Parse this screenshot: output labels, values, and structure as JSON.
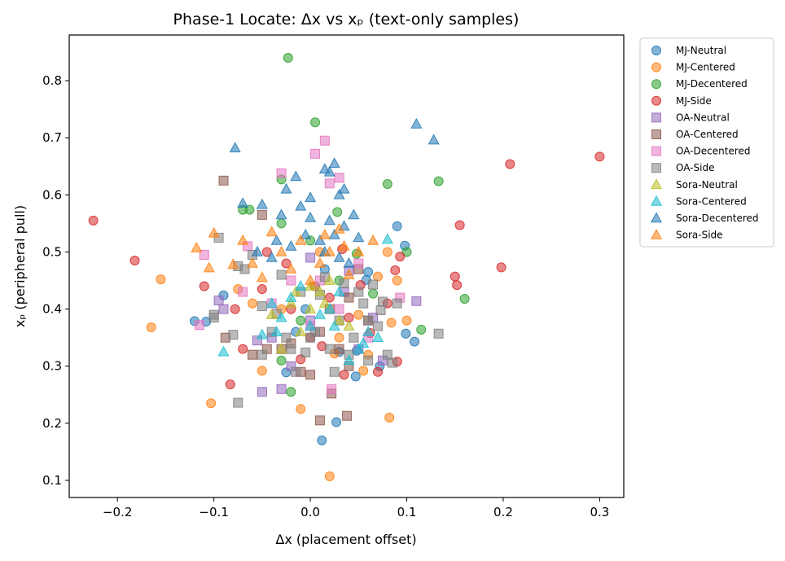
{
  "chart_data": {
    "type": "scatter",
    "title": "Phase-1 Locate: Δx vs xₚ (text-only samples)",
    "xlabel": "Δx (placement offset)",
    "ylabel": "xₚ (peripheral pull)",
    "xlim": [
      -0.25,
      0.325
    ],
    "ylim": [
      0.07,
      0.88
    ],
    "xticks": [
      -0.2,
      -0.1,
      0.0,
      0.1,
      0.2,
      0.3
    ],
    "xtick_labels": [
      "−0.2",
      "−0.1",
      "0.0",
      "0.1",
      "0.2",
      "0.3"
    ],
    "yticks": [
      0.1,
      0.2,
      0.3,
      0.4,
      0.5,
      0.6,
      0.7,
      0.8
    ],
    "ytick_labels": [
      "0.1",
      "0.2",
      "0.3",
      "0.4",
      "0.5",
      "0.6",
      "0.7",
      "0.8"
    ],
    "grid": false,
    "legend_position": "outside-right",
    "series": [
      {
        "name": "MJ-Neutral",
        "marker": "circle",
        "color": "#1f77b4",
        "points": [
          [
            -0.12,
            0.379
          ],
          [
            -0.108,
            0.378
          ],
          [
            -0.09,
            0.424
          ],
          [
            0.012,
            0.17
          ],
          [
            0.027,
            0.202
          ],
          [
            0.09,
            0.545
          ],
          [
            0.098,
            0.511
          ],
          [
            0.108,
            0.343
          ],
          [
            0.099,
            0.357
          ],
          [
            0.048,
            0.327
          ],
          [
            0.058,
            0.451
          ],
          [
            -0.025,
            0.289
          ],
          [
            0.03,
            0.325
          ],
          [
            -0.015,
            0.36
          ],
          [
            -0.005,
            0.4
          ],
          [
            0.005,
            0.44
          ],
          [
            0.015,
            0.47
          ],
          [
            0.047,
            0.282
          ],
          [
            0.06,
            0.465
          ],
          [
            0.072,
            0.3
          ]
        ]
      },
      {
        "name": "MJ-Centered",
        "marker": "circle",
        "color": "#ff7f0e",
        "points": [
          [
            -0.165,
            0.368
          ],
          [
            -0.155,
            0.452
          ],
          [
            -0.103,
            0.235
          ],
          [
            0.02,
            0.107
          ],
          [
            0.082,
            0.21
          ],
          [
            0.055,
            0.292
          ],
          [
            0.1,
            0.38
          ],
          [
            0.08,
            0.5
          ],
          [
            0.09,
            0.45
          ],
          [
            -0.06,
            0.41
          ],
          [
            -0.05,
            0.292
          ],
          [
            -0.01,
            0.225
          ],
          [
            0.06,
            0.32
          ],
          [
            0.03,
            0.35
          ],
          [
            -0.03,
            0.4
          ],
          [
            0.01,
            0.5
          ],
          [
            0.05,
            0.39
          ],
          [
            0.084,
            0.376
          ],
          [
            -0.075,
            0.435
          ],
          [
            0.004,
            0.44
          ],
          [
            0.025,
            0.322
          ],
          [
            0.07,
            0.457
          ]
        ]
      },
      {
        "name": "MJ-Decentered",
        "marker": "circle",
        "color": "#2ca02c",
        "points": [
          [
            -0.023,
            0.84
          ],
          [
            0.005,
            0.727
          ],
          [
            0.08,
            0.619
          ],
          [
            0.133,
            0.624
          ],
          [
            0.16,
            0.418
          ],
          [
            0.115,
            0.364
          ],
          [
            0.065,
            0.427
          ],
          [
            -0.02,
            0.255
          ],
          [
            -0.03,
            0.31
          ],
          [
            0.048,
            0.497
          ],
          [
            0.0,
            0.52
          ],
          [
            -0.03,
            0.55
          ],
          [
            0.028,
            0.57
          ],
          [
            -0.063,
            0.574
          ],
          [
            -0.07,
            0.574
          ],
          [
            0.1,
            0.5
          ],
          [
            0.03,
            0.45
          ],
          [
            -0.01,
            0.38
          ],
          [
            -0.03,
            0.627
          ]
        ]
      },
      {
        "name": "MJ-Side",
        "marker": "circle",
        "color": "#d62728",
        "points": [
          [
            -0.225,
            0.555
          ],
          [
            -0.182,
            0.485
          ],
          [
            -0.11,
            0.44
          ],
          [
            -0.083,
            0.268
          ],
          [
            -0.07,
            0.33
          ],
          [
            0.15,
            0.457
          ],
          [
            0.152,
            0.442
          ],
          [
            0.155,
            0.547
          ],
          [
            0.198,
            0.473
          ],
          [
            0.207,
            0.654
          ],
          [
            0.3,
            0.667
          ],
          [
            0.09,
            0.308
          ],
          [
            0.088,
            0.468
          ],
          [
            0.093,
            0.492
          ],
          [
            0.035,
            0.285
          ],
          [
            0.07,
            0.29
          ],
          [
            -0.02,
            0.4
          ],
          [
            0.04,
            0.385
          ],
          [
            -0.05,
            0.435
          ],
          [
            0.0,
            0.35
          ],
          [
            0.02,
            0.42
          ],
          [
            -0.045,
            0.5
          ],
          [
            0.012,
            0.335
          ],
          [
            -0.025,
            0.48
          ],
          [
            0.033,
            0.505
          ],
          [
            0.062,
            0.358
          ],
          [
            -0.078,
            0.4
          ],
          [
            0.052,
            0.442
          ],
          [
            0.08,
            0.41
          ],
          [
            -0.01,
            0.312
          ]
        ]
      },
      {
        "name": "OA-Neutral",
        "marker": "square",
        "color": "#9467bd",
        "points": [
          [
            -0.09,
            0.4
          ],
          [
            -0.05,
            0.255
          ],
          [
            0.0,
            0.49
          ],
          [
            0.05,
            0.33
          ],
          [
            0.075,
            0.31
          ],
          [
            0.11,
            0.414
          ],
          [
            -0.04,
            0.35
          ],
          [
            -0.03,
            0.26
          ],
          [
            0.035,
            0.43
          ],
          [
            0.065,
            0.385
          ],
          [
            -0.02,
            0.3
          ],
          [
            -0.055,
            0.345
          ],
          [
            0.0,
            0.38
          ],
          [
            0.04,
            0.467
          ],
          [
            -0.095,
            0.415
          ]
        ]
      },
      {
        "name": "OA-Centered",
        "marker": "square",
        "color": "#8c564b",
        "points": [
          [
            -0.09,
            0.625
          ],
          [
            -0.05,
            0.565
          ],
          [
            0.01,
            0.205
          ],
          [
            0.022,
            0.252
          ],
          [
            0.038,
            0.213
          ],
          [
            -0.03,
            0.33
          ],
          [
            0.0,
            0.285
          ],
          [
            0.04,
            0.3
          ],
          [
            -0.06,
            0.32
          ],
          [
            0.01,
            0.36
          ],
          [
            -0.02,
            0.34
          ],
          [
            0.05,
            0.47
          ],
          [
            -0.088,
            0.35
          ],
          [
            0.02,
            0.4
          ],
          [
            0.06,
            0.38
          ],
          [
            -0.045,
            0.33
          ],
          [
            0.03,
            0.33
          ],
          [
            -0.01,
            0.29
          ],
          [
            0.04,
            0.42
          ]
        ]
      },
      {
        "name": "OA-Decentered",
        "marker": "square",
        "color": "#e377c2",
        "points": [
          [
            -0.03,
            0.638
          ],
          [
            0.005,
            0.672
          ],
          [
            0.015,
            0.695
          ],
          [
            0.02,
            0.62
          ],
          [
            0.03,
            0.63
          ],
          [
            -0.11,
            0.495
          ],
          [
            -0.115,
            0.372
          ],
          [
            -0.065,
            0.51
          ],
          [
            0.093,
            0.42
          ],
          [
            0.022,
            0.26
          ],
          [
            -0.04,
            0.41
          ],
          [
            0.05,
            0.48
          ],
          [
            0.0,
            0.37
          ],
          [
            -0.02,
            0.45
          ],
          [
            0.03,
            0.4
          ],
          [
            0.06,
            0.35
          ],
          [
            -0.07,
            0.43
          ],
          [
            0.01,
            0.45
          ]
        ]
      },
      {
        "name": "OA-Side",
        "marker": "square",
        "color": "#7f7f7f",
        "points": [
          [
            -0.1,
            0.39
          ],
          [
            -0.095,
            0.525
          ],
          [
            -0.075,
            0.236
          ],
          [
            -0.075,
            0.475
          ],
          [
            0.133,
            0.357
          ],
          [
            0.08,
            0.32
          ],
          [
            0.06,
            0.38
          ],
          [
            0.05,
            0.43
          ],
          [
            -0.05,
            0.405
          ],
          [
            0.0,
            0.35
          ],
          [
            -0.03,
            0.46
          ],
          [
            0.02,
            0.33
          ],
          [
            0.035,
            0.445
          ],
          [
            -0.015,
            0.29
          ],
          [
            -0.06,
            0.495
          ],
          [
            0.01,
            0.425
          ],
          [
            0.055,
            0.41
          ],
          [
            0.073,
            0.398
          ],
          [
            -0.04,
            0.36
          ],
          [
            0.025,
            0.29
          ],
          [
            0.075,
            0.413
          ],
          [
            -0.025,
            0.35
          ],
          [
            0.09,
            0.41
          ],
          [
            -0.005,
            0.324
          ],
          [
            0.045,
            0.35
          ],
          [
            0.085,
            0.306
          ],
          [
            -0.01,
            0.43
          ],
          [
            -0.068,
            0.47
          ],
          [
            0.005,
            0.36
          ],
          [
            -0.08,
            0.355
          ],
          [
            -0.05,
            0.32
          ],
          [
            0.03,
            0.38
          ],
          [
            0.065,
            0.443
          ],
          [
            -0.035,
            0.392
          ],
          [
            0.015,
            0.456
          ],
          [
            0.06,
            0.31
          ],
          [
            -0.02,
            0.33
          ],
          [
            0.04,
            0.32
          ],
          [
            -0.1,
            0.385
          ],
          [
            0.07,
            0.37
          ]
        ]
      },
      {
        "name": "Sora-Neutral",
        "marker": "triangle",
        "color": "#bcbd22",
        "points": [
          [
            -0.03,
            0.33
          ],
          [
            0.0,
            0.4
          ],
          [
            0.02,
            0.45
          ],
          [
            -0.01,
            0.36
          ],
          [
            0.03,
            0.38
          ],
          [
            -0.02,
            0.41
          ],
          [
            0.01,
            0.43
          ],
          [
            0.04,
            0.37
          ],
          [
            -0.04,
            0.39
          ],
          [
            0.0,
            0.44
          ],
          [
            0.015,
            0.41
          ],
          [
            -0.015,
            0.43
          ]
        ]
      },
      {
        "name": "Sora-Centered",
        "marker": "triangle",
        "color": "#17becf",
        "points": [
          [
            -0.09,
            0.325
          ],
          [
            0.08,
            0.522
          ],
          [
            0.06,
            0.36
          ],
          [
            0.05,
            0.33
          ],
          [
            -0.04,
            0.41
          ],
          [
            0.0,
            0.37
          ],
          [
            0.02,
            0.4
          ],
          [
            -0.02,
            0.42
          ],
          [
            0.04,
            0.31
          ],
          [
            -0.03,
            0.385
          ],
          [
            0.07,
            0.35
          ],
          [
            0.01,
            0.39
          ],
          [
            0.03,
            0.43
          ],
          [
            -0.05,
            0.355
          ],
          [
            0.055,
            0.34
          ],
          [
            -0.01,
            0.44
          ],
          [
            0.025,
            0.37
          ],
          [
            -0.035,
            0.36
          ]
        ]
      },
      {
        "name": "Sora-Decentered",
        "marker": "triangle",
        "color": "#1f77b4",
        "points": [
          [
            -0.078,
            0.682
          ],
          [
            0.11,
            0.724
          ],
          [
            0.128,
            0.696
          ],
          [
            -0.07,
            0.585
          ],
          [
            -0.05,
            0.583
          ],
          [
            -0.025,
            0.61
          ],
          [
            -0.015,
            0.632
          ],
          [
            -0.01,
            0.58
          ],
          [
            0.0,
            0.595
          ],
          [
            0.015,
            0.645
          ],
          [
            0.02,
            0.64
          ],
          [
            0.025,
            0.655
          ],
          [
            0.03,
            0.6
          ],
          [
            -0.03,
            0.565
          ],
          [
            0.02,
            0.555
          ],
          [
            0.035,
            0.545
          ],
          [
            0.045,
            0.565
          ],
          [
            0.01,
            0.52
          ],
          [
            -0.005,
            0.53
          ],
          [
            0.03,
            0.49
          ],
          [
            -0.02,
            0.51
          ],
          [
            0.05,
            0.525
          ],
          [
            -0.04,
            0.49
          ],
          [
            0.035,
            0.61
          ],
          [
            0.0,
            0.56
          ],
          [
            0.025,
            0.53
          ],
          [
            -0.035,
            0.52
          ],
          [
            0.015,
            0.5
          ],
          [
            0.04,
            0.48
          ],
          [
            -0.055,
            0.5
          ]
        ]
      },
      {
        "name": "Sora-Side",
        "marker": "triangle",
        "color": "#ff7f0e",
        "points": [
          [
            -0.118,
            0.507
          ],
          [
            -0.105,
            0.472
          ],
          [
            -0.1,
            0.533
          ],
          [
            -0.07,
            0.52
          ],
          [
            -0.04,
            0.535
          ],
          [
            -0.01,
            0.52
          ],
          [
            0.02,
            0.5
          ],
          [
            0.04,
            0.46
          ],
          [
            0.065,
            0.52
          ],
          [
            -0.06,
            0.48
          ],
          [
            0.0,
            0.45
          ],
          [
            0.03,
            0.54
          ],
          [
            -0.02,
            0.47
          ],
          [
            0.05,
            0.5
          ],
          [
            -0.08,
            0.478
          ],
          [
            0.01,
            0.48
          ],
          [
            -0.05,
            0.455
          ],
          [
            0.035,
            0.51
          ],
          [
            -0.03,
            0.5
          ],
          [
            0.015,
            0.53
          ]
        ]
      }
    ]
  }
}
